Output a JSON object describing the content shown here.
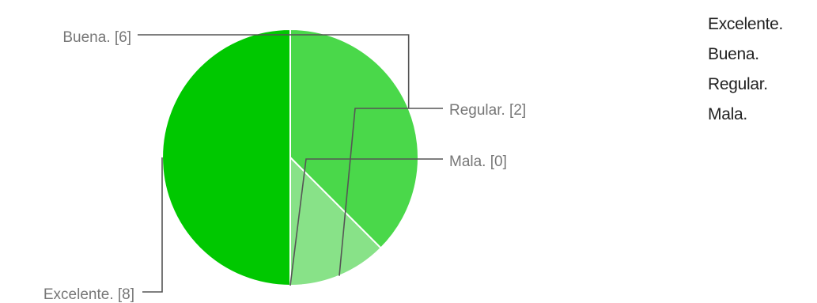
{
  "chart_data": {
    "type": "pie",
    "title": "",
    "slices": [
      {
        "label": "Excelente.",
        "value": 8,
        "color": "#00c800",
        "callout": "Excelente. [8]"
      },
      {
        "label": "Buena.",
        "value": 6,
        "color": "#4ad84a",
        "callout": "Buena. [6]"
      },
      {
        "label": "Regular.",
        "value": 2,
        "color": "#88e288",
        "callout": "Regular. [2]"
      },
      {
        "label": "Mala.",
        "value": 0,
        "color": "#b8eeb8",
        "callout": "Mala. [0]"
      }
    ],
    "legend": {
      "position": "right",
      "items": [
        "Excelente.",
        "Buena.",
        "Regular.",
        "Mala."
      ]
    }
  }
}
